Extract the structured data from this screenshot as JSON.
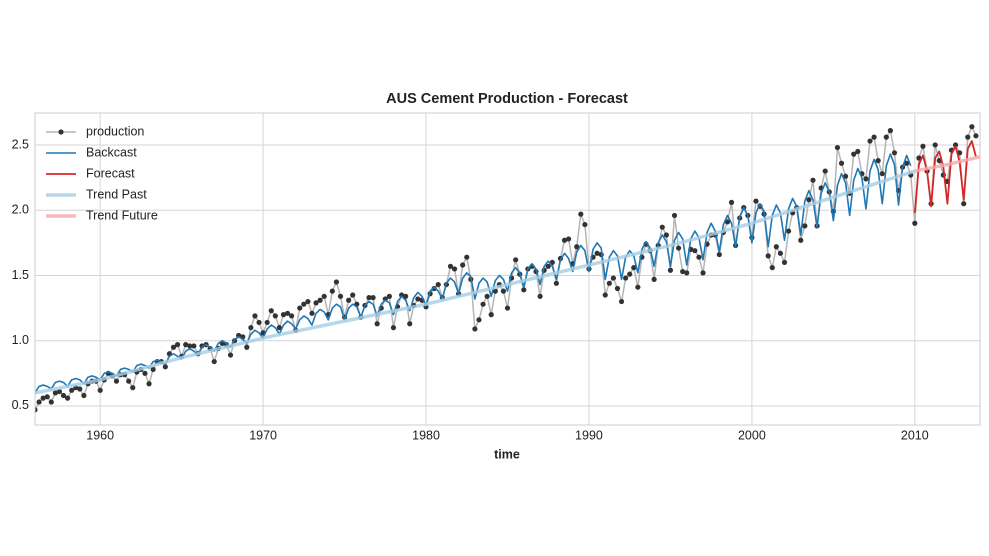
{
  "chart_data": {
    "type": "line",
    "title": "AUS Cement Production - Forecast",
    "x_label": "time",
    "xlim": [
      1956,
      2014
    ],
    "ylim": [
      0.354,
      2.745
    ],
    "xticks": [
      1960,
      1970,
      1980,
      1990,
      2000,
      2010
    ],
    "yticks": [
      0.5,
      {
        "value": 1,
        "label": "1.0"
      },
      1.5,
      {
        "value": 2,
        "label": "2.0"
      },
      2.5
    ],
    "grid": true,
    "legend": "upper left",
    "series": [
      {
        "name": "production",
        "color": "#b5b5b5",
        "marker_color": "#333333",
        "width": 1.5,
        "markers": true,
        "x": [
          1956,
          1956.25,
          1956.5,
          1956.75,
          1957,
          1957.25,
          1957.5,
          1957.75,
          1958,
          1958.25,
          1958.5,
          1958.75,
          1959,
          1959.25,
          1959.5,
          1959.75,
          1960,
          1960.25,
          1960.5,
          1960.75,
          1961,
          1961.25,
          1961.5,
          1961.75,
          1962,
          1962.25,
          1962.5,
          1962.75,
          1963,
          1963.25,
          1963.5,
          1963.75,
          1964,
          1964.25,
          1964.5,
          1964.75,
          1965,
          1965.25,
          1965.5,
          1965.75,
          1966,
          1966.25,
          1966.5,
          1966.75,
          1967,
          1967.25,
          1967.5,
          1967.75,
          1968,
          1968.25,
          1968.5,
          1968.75,
          1969,
          1969.25,
          1969.5,
          1969.75,
          1970,
          1970.25,
          1970.5,
          1970.75,
          1971,
          1971.25,
          1971.5,
          1971.75,
          1972,
          1972.25,
          1972.5,
          1972.75,
          1973,
          1973.25,
          1973.5,
          1973.75,
          1974,
          1974.25,
          1974.5,
          1974.75,
          1975,
          1975.25,
          1975.5,
          1975.75,
          1976,
          1976.25,
          1976.5,
          1976.75,
          1977,
          1977.25,
          1977.5,
          1977.75,
          1978,
          1978.25,
          1978.5,
          1978.75,
          1979,
          1979.25,
          1979.5,
          1979.75,
          1980,
          1980.25,
          1980.5,
          1980.75,
          1981,
          1981.25,
          1981.5,
          1981.75,
          1982,
          1982.25,
          1982.5,
          1982.75,
          1983,
          1983.25,
          1983.5,
          1983.75,
          1984,
          1984.25,
          1984.5,
          1984.75,
          1985,
          1985.25,
          1985.5,
          1985.75,
          1986,
          1986.25,
          1986.5,
          1986.75,
          1987,
          1987.25,
          1987.5,
          1987.75,
          1988,
          1988.25,
          1988.5,
          1988.75,
          1989,
          1989.25,
          1989.5,
          1989.75,
          1990,
          1990.25,
          1990.5,
          1990.75,
          1991,
          1991.25,
          1991.5,
          1991.75,
          1992,
          1992.25,
          1992.5,
          1992.75,
          1993,
          1993.25,
          1993.5,
          1993.75,
          1994,
          1994.25,
          1994.5,
          1994.75,
          1995,
          1995.25,
          1995.5,
          1995.75,
          1996,
          1996.25,
          1996.5,
          1996.75,
          1997,
          1997.25,
          1997.5,
          1997.75,
          1998,
          1998.25,
          1998.5,
          1998.75,
          1999,
          1999.25,
          1999.5,
          1999.75,
          2000,
          2000.25,
          2000.5,
          2000.75,
          2001,
          2001.25,
          2001.5,
          2001.75,
          2002,
          2002.25,
          2002.5,
          2002.75,
          2003,
          2003.25,
          2003.5,
          2003.75,
          2004,
          2004.25,
          2004.5,
          2004.75,
          2005,
          2005.25,
          2005.5,
          2005.75,
          2006,
          2006.25,
          2006.5,
          2006.75,
          2007,
          2007.25,
          2007.5,
          2007.75,
          2008,
          2008.25,
          2008.5,
          2008.75,
          2009,
          2009.25,
          2009.5,
          2009.75,
          2010,
          2010.25,
          2010.5,
          2010.75,
          2011,
          2011.25,
          2011.5,
          2011.75,
          2012,
          2012.25,
          2012.5,
          2012.75,
          2013,
          2013.25,
          2013.5,
          2013.75
        ],
        "values": [
          0.47,
          0.53,
          0.56,
          0.57,
          0.53,
          0.6,
          0.61,
          0.58,
          0.56,
          0.62,
          0.64,
          0.63,
          0.58,
          0.67,
          0.69,
          0.69,
          0.62,
          0.7,
          0.75,
          0.73,
          0.69,
          0.74,
          0.74,
          0.69,
          0.64,
          0.76,
          0.78,
          0.75,
          0.67,
          0.78,
          0.84,
          0.84,
          0.8,
          0.9,
          0.95,
          0.97,
          0.88,
          0.97,
          0.96,
          0.96,
          0.9,
          0.96,
          0.97,
          0.94,
          0.84,
          0.94,
          0.98,
          0.97,
          0.89,
          1.0,
          1.04,
          1.03,
          0.95,
          1.1,
          1.19,
          1.14,
          1.06,
          1.14,
          1.23,
          1.19,
          1.1,
          1.2,
          1.21,
          1.19,
          1.08,
          1.25,
          1.28,
          1.3,
          1.21,
          1.29,
          1.31,
          1.34,
          1.2,
          1.38,
          1.45,
          1.34,
          1.18,
          1.31,
          1.35,
          1.28,
          1.18,
          1.27,
          1.33,
          1.33,
          1.13,
          1.25,
          1.32,
          1.34,
          1.1,
          1.26,
          1.35,
          1.34,
          1.13,
          1.27,
          1.32,
          1.31,
          1.26,
          1.36,
          1.4,
          1.43,
          1.33,
          1.43,
          1.57,
          1.55,
          1.36,
          1.58,
          1.64,
          1.47,
          1.09,
          1.16,
          1.28,
          1.34,
          1.2,
          1.38,
          1.43,
          1.38,
          1.25,
          1.48,
          1.62,
          1.51,
          1.39,
          1.55,
          1.57,
          1.53,
          1.34,
          1.54,
          1.57,
          1.6,
          1.44,
          1.63,
          1.77,
          1.78,
          1.59,
          1.72,
          1.97,
          1.89,
          1.55,
          1.64,
          1.67,
          1.66,
          1.35,
          1.44,
          1.48,
          1.4,
          1.3,
          1.48,
          1.51,
          1.56,
          1.41,
          1.64,
          1.74,
          1.69,
          1.47,
          1.73,
          1.87,
          1.81,
          1.54,
          1.96,
          1.71,
          1.53,
          1.52,
          1.7,
          1.69,
          1.64,
          1.52,
          1.74,
          1.81,
          1.81,
          1.66,
          1.83,
          1.91,
          2.06,
          1.73,
          1.94,
          2.02,
          1.96,
          1.79,
          2.07,
          2.03,
          1.97,
          1.65,
          1.56,
          1.72,
          1.67,
          1.6,
          1.84,
          1.98,
          2.02,
          1.77,
          1.88,
          2.08,
          2.23,
          1.88,
          2.17,
          2.3,
          2.14,
          1.99,
          2.48,
          2.36,
          2.26,
          2.13,
          2.43,
          2.45,
          2.28,
          2.24,
          2.53,
          2.56,
          2.38,
          2.28,
          2.56,
          2.61,
          2.44,
          2.15,
          2.33,
          2.36,
          2.27,
          1.9,
          2.4,
          2.49,
          2.3,
          2.05,
          2.5,
          2.38,
          2.27,
          2.22,
          2.46,
          2.5,
          2.44,
          2.05,
          2.56,
          2.64,
          2.57
        ]
      },
      {
        "name": "Backcast",
        "color": "#1f77b4",
        "width": 1.6,
        "x": [
          1956,
          1956.25,
          1956.5,
          1956.75,
          1957,
          1957.25,
          1957.5,
          1957.75,
          1958,
          1958.25,
          1958.5,
          1958.75,
          1959,
          1959.25,
          1959.5,
          1959.75,
          1960,
          1960.25,
          1960.5,
          1960.75,
          1961,
          1961.25,
          1961.5,
          1961.75,
          1962,
          1962.25,
          1962.5,
          1962.75,
          1963,
          1963.25,
          1963.5,
          1963.75,
          1964,
          1964.25,
          1964.5,
          1964.75,
          1965,
          1965.25,
          1965.5,
          1965.75,
          1966,
          1966.25,
          1966.5,
          1966.75,
          1967,
          1967.25,
          1967.5,
          1967.75,
          1968,
          1968.25,
          1968.5,
          1968.75,
          1969,
          1969.25,
          1969.5,
          1969.75,
          1970,
          1970.25,
          1970.5,
          1970.75,
          1971,
          1971.25,
          1971.5,
          1971.75,
          1972,
          1972.25,
          1972.5,
          1972.75,
          1973,
          1973.25,
          1973.5,
          1973.75,
          1974,
          1974.25,
          1974.5,
          1974.75,
          1975,
          1975.25,
          1975.5,
          1975.75,
          1976,
          1976.25,
          1976.5,
          1976.75,
          1977,
          1977.25,
          1977.5,
          1977.75,
          1978,
          1978.25,
          1978.5,
          1978.75,
          1979,
          1979.25,
          1979.5,
          1979.75,
          1980,
          1980.25,
          1980.5,
          1980.75,
          1981,
          1981.25,
          1981.5,
          1981.75,
          1982,
          1982.25,
          1982.5,
          1982.75,
          1983,
          1983.25,
          1983.5,
          1983.75,
          1984,
          1984.25,
          1984.5,
          1984.75,
          1985,
          1985.25,
          1985.5,
          1985.75,
          1986,
          1986.25,
          1986.5,
          1986.75,
          1987,
          1987.25,
          1987.5,
          1987.75,
          1988,
          1988.25,
          1988.5,
          1988.75,
          1989,
          1989.25,
          1989.5,
          1989.75,
          1990,
          1990.25,
          1990.5,
          1990.75,
          1991,
          1991.25,
          1991.5,
          1991.75,
          1992,
          1992.25,
          1992.5,
          1992.75,
          1993,
          1993.25,
          1993.5,
          1993.75,
          1994,
          1994.25,
          1994.5,
          1994.75,
          1995,
          1995.25,
          1995.5,
          1995.75,
          1996,
          1996.25,
          1996.5,
          1996.75,
          1997,
          1997.25,
          1997.5,
          1997.75,
          1998,
          1998.25,
          1998.5,
          1998.75,
          1999,
          1999.25,
          1999.5,
          1999.75,
          2000,
          2000.25,
          2000.5,
          2000.75,
          2001,
          2001.25,
          2001.5,
          2001.75,
          2002,
          2002.25,
          2002.5,
          2002.75,
          2003,
          2003.25,
          2003.5,
          2003.75,
          2004,
          2004.25,
          2004.5,
          2004.75,
          2005,
          2005.25,
          2005.5,
          2005.75,
          2006,
          2006.25,
          2006.5,
          2006.75,
          2007,
          2007.25,
          2007.5,
          2007.75,
          2008,
          2008.25,
          2008.5,
          2008.75,
          2009,
          2009.25,
          2009.5,
          2009.75
        ],
        "values": [
          0.6,
          0.65,
          0.66,
          0.65,
          0.63,
          0.68,
          0.69,
          0.68,
          0.65,
          0.7,
          0.71,
          0.7,
          0.67,
          0.72,
          0.73,
          0.72,
          0.7,
          0.75,
          0.76,
          0.75,
          0.73,
          0.78,
          0.79,
          0.78,
          0.76,
          0.81,
          0.82,
          0.81,
          0.79,
          0.84,
          0.85,
          0.84,
          0.82,
          0.88,
          0.9,
          0.88,
          0.86,
          0.92,
          0.94,
          0.92,
          0.89,
          0.95,
          0.97,
          0.95,
          0.92,
          0.98,
          1.0,
          0.98,
          0.95,
          1.01,
          1.03,
          1.01,
          0.98,
          1.05,
          1.08,
          1.06,
          1.02,
          1.09,
          1.12,
          1.1,
          1.05,
          1.12,
          1.15,
          1.13,
          1.09,
          1.16,
          1.19,
          1.17,
          1.12,
          1.21,
          1.24,
          1.22,
          1.16,
          1.25,
          1.28,
          1.26,
          1.16,
          1.25,
          1.28,
          1.26,
          1.18,
          1.27,
          1.3,
          1.28,
          1.19,
          1.28,
          1.31,
          1.29,
          1.2,
          1.3,
          1.34,
          1.31,
          1.23,
          1.33,
          1.37,
          1.34,
          1.27,
          1.38,
          1.41,
          1.38,
          1.32,
          1.44,
          1.48,
          1.45,
          1.36,
          1.48,
          1.52,
          1.49,
          1.32,
          1.44,
          1.48,
          1.45,
          1.34,
          1.46,
          1.5,
          1.47,
          1.38,
          1.52,
          1.56,
          1.52,
          1.41,
          1.55,
          1.59,
          1.55,
          1.43,
          1.57,
          1.61,
          1.57,
          1.47,
          1.62,
          1.67,
          1.63,
          1.53,
          1.68,
          1.73,
          1.69,
          1.53,
          1.7,
          1.75,
          1.71,
          1.47,
          1.64,
          1.69,
          1.65,
          1.47,
          1.64,
          1.69,
          1.65,
          1.52,
          1.7,
          1.76,
          1.71,
          1.57,
          1.75,
          1.81,
          1.76,
          1.57,
          1.77,
          1.83,
          1.78,
          1.58,
          1.78,
          1.84,
          1.79,
          1.62,
          1.83,
          1.9,
          1.84,
          1.68,
          1.89,
          1.96,
          1.9,
          1.72,
          1.95,
          2.02,
          1.96,
          1.75,
          1.98,
          2.05,
          1.99,
          1.72,
          1.96,
          2.04,
          1.98,
          1.77,
          2.01,
          2.09,
          2.03,
          1.81,
          2.07,
          2.15,
          2.08,
          1.87,
          2.13,
          2.21,
          2.14,
          1.92,
          2.19,
          2.28,
          2.21,
          1.96,
          2.23,
          2.32,
          2.25,
          2.01,
          2.3,
          2.39,
          2.31,
          2.05,
          2.34,
          2.43,
          2.35,
          2.04,
          2.33,
          2.42,
          2.34
        ]
      },
      {
        "name": "Forecast",
        "color": "#d62728",
        "width": 1.8,
        "x": [
          2010,
          2010.25,
          2010.5,
          2010.75,
          2011,
          2011.25,
          2011.5,
          2011.75,
          2012,
          2012.25,
          2012.5,
          2012.75,
          2013,
          2013.25,
          2013.5,
          2013.75
        ],
        "values": [
          1.98,
          2.35,
          2.42,
          2.3,
          2.03,
          2.4,
          2.45,
          2.33,
          2.05,
          2.43,
          2.49,
          2.37,
          2.08,
          2.47,
          2.53,
          2.41
        ]
      },
      {
        "name": "Trend Past",
        "color": "#a6cee3",
        "width": 3.5,
        "x": [
          1956,
          1960,
          1965,
          1970,
          1975,
          1980,
          1985,
          1990,
          1995,
          2000,
          2005,
          2010
        ],
        "values": [
          0.6,
          0.7,
          0.87,
          1.02,
          1.15,
          1.28,
          1.43,
          1.58,
          1.73,
          1.9,
          2.1,
          2.3
        ]
      },
      {
        "name": "Trend Future",
        "color": "#f4a9a8",
        "width": 3.5,
        "x": [
          2010,
          2012,
          2014
        ],
        "values": [
          2.3,
          2.35,
          2.41
        ]
      }
    ]
  }
}
